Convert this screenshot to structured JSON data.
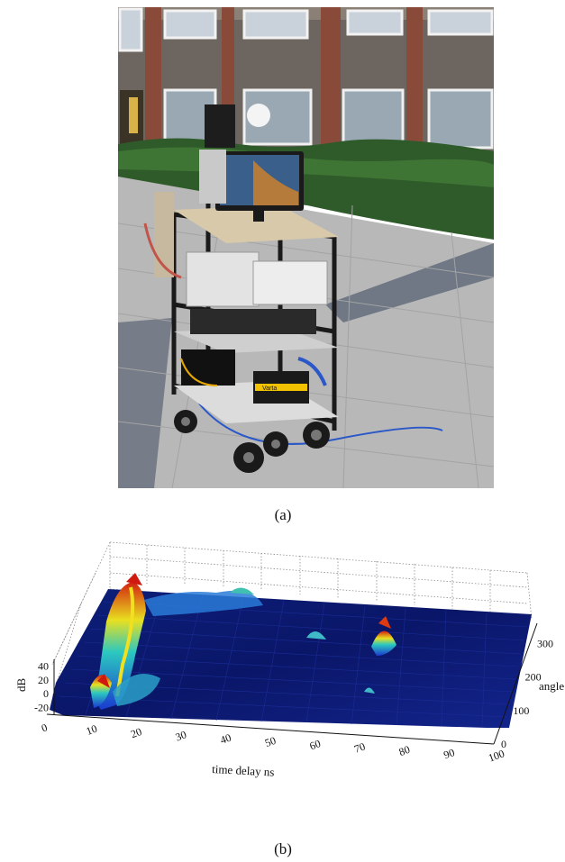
{
  "figure": {
    "caption_a": "(a)",
    "caption_b": "(b)"
  },
  "photo": {
    "trolley_battery_label": "Varta"
  },
  "chart_data": {
    "type": "surface",
    "xlabel": "time delay ns",
    "ylabel": "angle",
    "zlabel": "dB",
    "x_ticks": [
      0,
      10,
      20,
      30,
      40,
      50,
      60,
      70,
      80,
      90,
      100
    ],
    "y_ticks": [
      0,
      100,
      200,
      300
    ],
    "z_ticks": [
      -20,
      0,
      20,
      40
    ],
    "xlim": [
      0,
      100
    ],
    "ylim": [
      0,
      360
    ],
    "zlim": [
      -30,
      50
    ],
    "grid": true,
    "colormap": "jet",
    "peaks": [
      {
        "time_delay_ns": 14,
        "angle": 330,
        "dB": 40
      },
      {
        "time_delay_ns": 16,
        "angle": 60,
        "dB": 25
      },
      {
        "time_delay_ns": 50,
        "angle": 320,
        "dB": 5
      },
      {
        "time_delay_ns": 62,
        "angle": 250,
        "dB": 0
      },
      {
        "time_delay_ns": 80,
        "angle": 250,
        "dB": 15
      }
    ]
  }
}
